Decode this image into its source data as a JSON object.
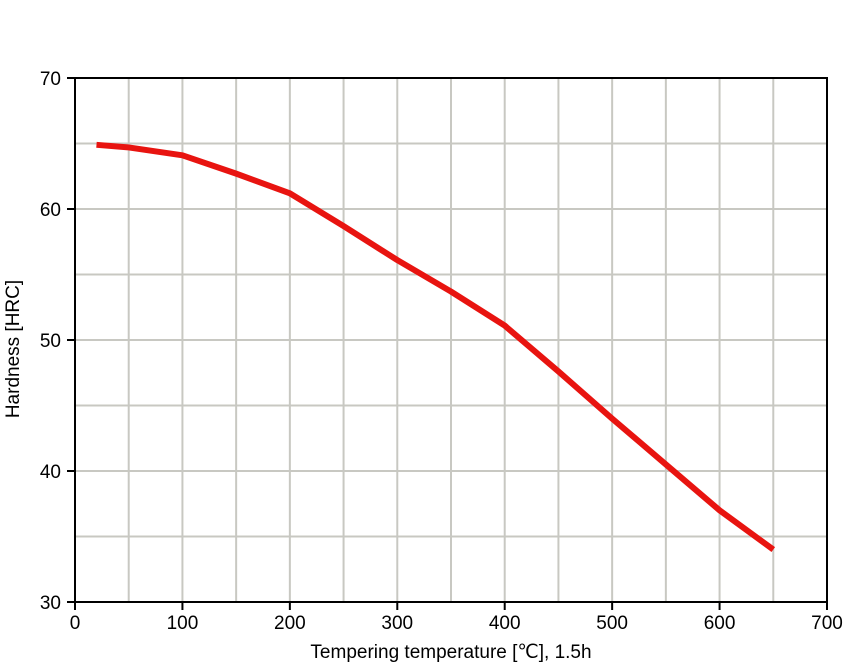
{
  "page": {
    "background_color": "#ffffff"
  },
  "chart_data": {
    "type": "line",
    "title": "",
    "xlabel": "Tempering temperature [℃], 1.5h",
    "ylabel": "Hardness [HRC]",
    "x": [
      20,
      50,
      100,
      150,
      200,
      250,
      300,
      350,
      400,
      450,
      500,
      550,
      600,
      650
    ],
    "series": [
      {
        "name": "Hardness",
        "color": "#e81410",
        "values": [
          64.9,
          64.7,
          64.1,
          62.7,
          61.2,
          58.7,
          56.1,
          53.7,
          51.1,
          47.6,
          44.0,
          40.5,
          37.0,
          34.0
        ]
      }
    ],
    "xlim": [
      0,
      700
    ],
    "ylim": [
      30,
      70
    ],
    "x_major_ticks": [
      0,
      100,
      200,
      300,
      400,
      500,
      600,
      700
    ],
    "y_major_ticks": [
      30,
      40,
      50,
      60,
      70
    ],
    "x_grid_step": 50,
    "y_grid_step": 5,
    "grid": true,
    "grid_color": "#c8c8c2",
    "axis_color": "#000000",
    "legend_position": "none"
  }
}
